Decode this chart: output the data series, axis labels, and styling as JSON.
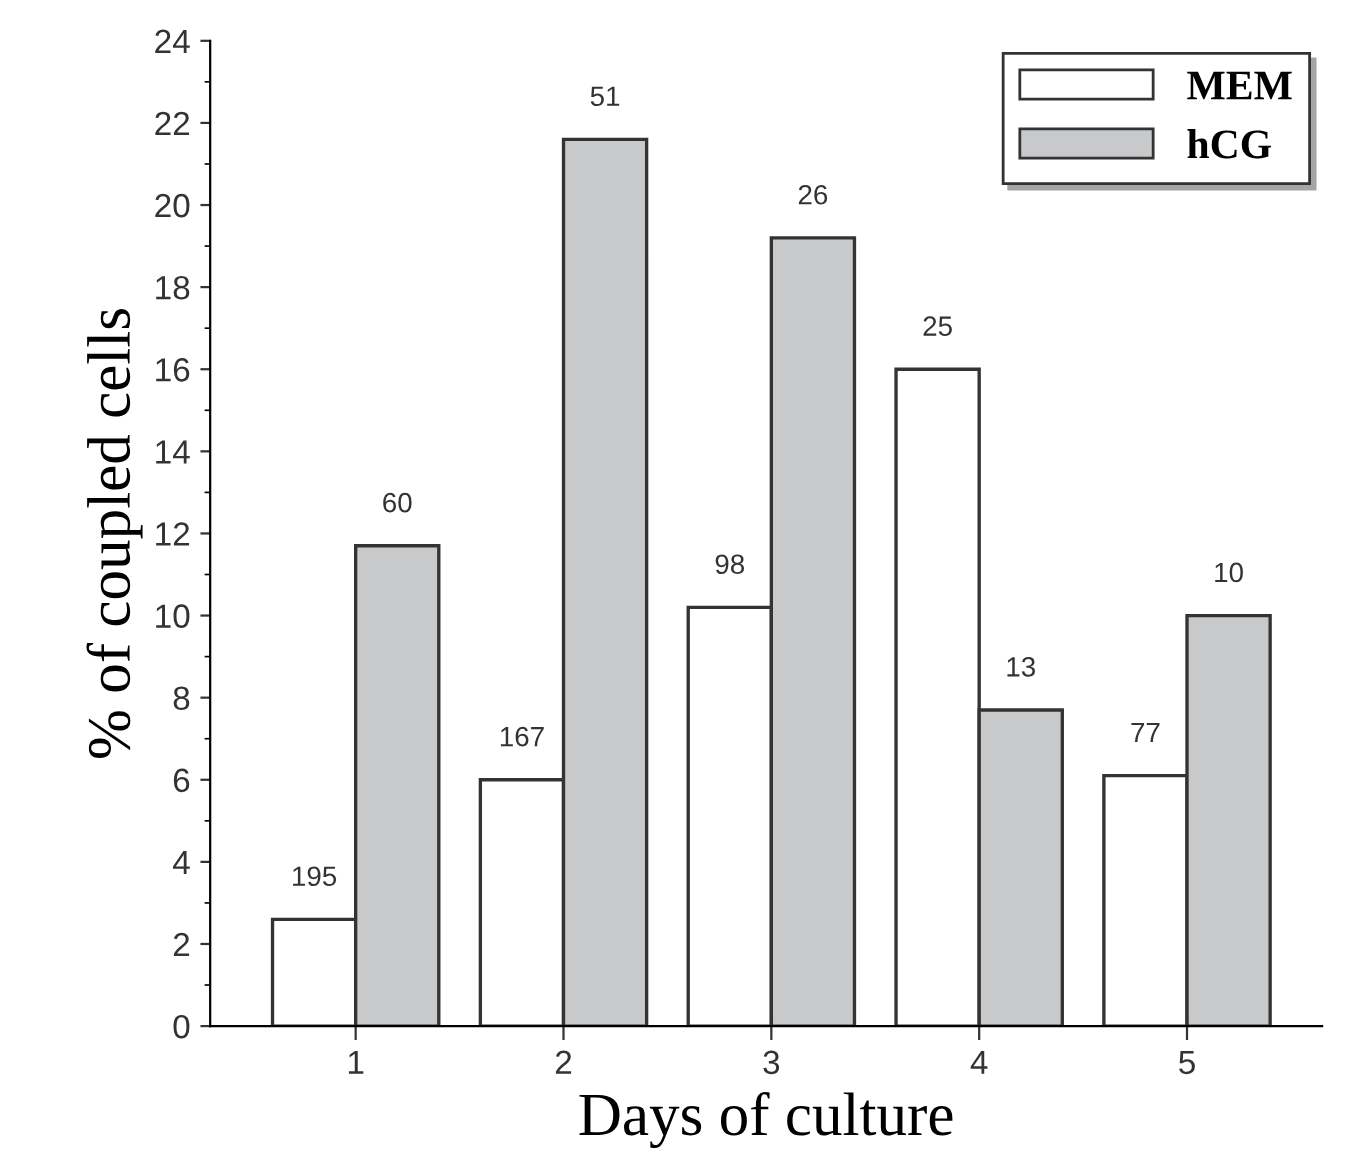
{
  "chart_data": {
    "type": "bar",
    "xlabel": "Days of culture",
    "ylabel": "% of coupled cells",
    "categories": [
      "1",
      "2",
      "3",
      "4",
      "5"
    ],
    "series": [
      {
        "name": "MEM",
        "color": "#ffffff",
        "values": [
          2.6,
          6.0,
          10.2,
          16.0,
          6.1
        ]
      },
      {
        "name": "hCG",
        "color": "#c8c9cb",
        "values": [
          11.7,
          21.6,
          19.2,
          7.7,
          10.0
        ]
      }
    ],
    "annotations": [
      {
        "text": "195",
        "x": "1",
        "y": 2.6
      },
      {
        "text": "60",
        "x": "1",
        "y": 11.7
      },
      {
        "text": "167",
        "x": "2",
        "y": 6.0
      },
      {
        "text": "51",
        "x": "2",
        "y": 21.6
      },
      {
        "text": "98",
        "x": "3",
        "y": 10.2
      },
      {
        "text": "26",
        "x": "3",
        "y": 19.2
      },
      {
        "text": "25",
        "x": "4",
        "y": 16.0
      },
      {
        "text": "13",
        "x": "4",
        "y": 7.7
      },
      {
        "text": "77",
        "x": "5",
        "y": 6.1
      },
      {
        "text": "10",
        "x": "5",
        "y": 10.0
      }
    ],
    "ylim": [
      0,
      24
    ],
    "yticks": [
      0,
      2,
      4,
      6,
      8,
      10,
      12,
      14,
      16,
      18,
      20,
      22,
      24
    ],
    "grid": false,
    "legend": "top right"
  }
}
